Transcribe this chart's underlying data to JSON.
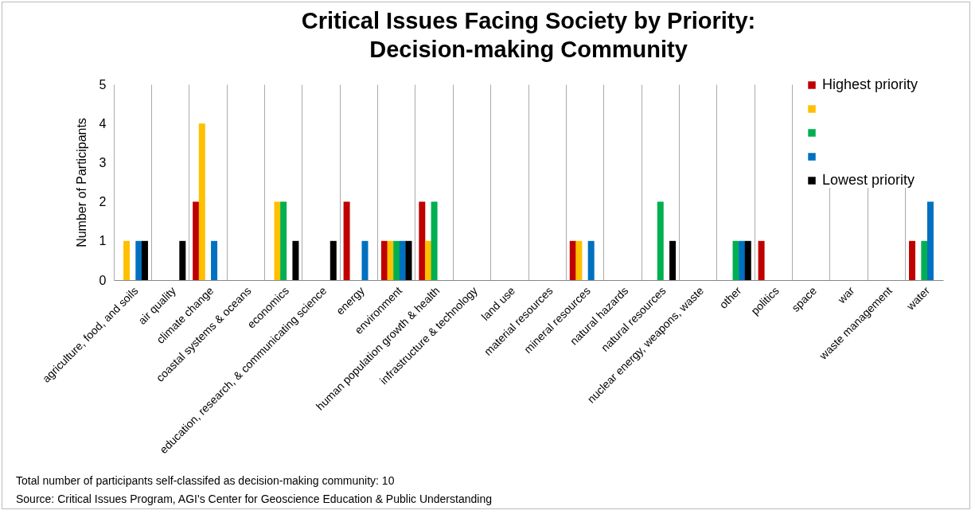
{
  "chart_data": {
    "type": "bar",
    "title": "Critical Issues Facing Society by Priority:\nDecision-making Community",
    "ylabel": "Number of Participants",
    "categories": [
      "agriculture, food, and soils",
      "air quality",
      "climate change",
      "coastal systems & oceans",
      "economics",
      "education, research, & communicating science",
      "energy",
      "environment",
      "human population growth & health",
      "infrastructure & technology",
      "land use",
      "material resources",
      "mineral resources",
      "natural hazards",
      "natural resources",
      "nuclear energy, weapons, waste",
      "other",
      "politics",
      "space",
      "war",
      "waste management",
      "water"
    ],
    "series": [
      {
        "name": "Highest priority",
        "color": "#c00000",
        "values": [
          0,
          0,
          2,
          0,
          0,
          0,
          2,
          1,
          2,
          0,
          0,
          0,
          1,
          0,
          0,
          0,
          0,
          1,
          0,
          0,
          0,
          1
        ]
      },
      {
        "color": "#ffc000",
        "values": [
          1,
          0,
          4,
          0,
          2,
          0,
          0,
          1,
          1,
          0,
          0,
          0,
          1,
          0,
          0,
          0,
          0,
          0,
          0,
          0,
          0,
          0
        ]
      },
      {
        "color": "#00b050",
        "values": [
          0,
          0,
          0,
          0,
          2,
          0,
          0,
          1,
          2,
          0,
          0,
          0,
          0,
          0,
          2,
          0,
          1,
          0,
          0,
          0,
          0,
          1
        ]
      },
      {
        "color": "#0070c0",
        "values": [
          1,
          0,
          1,
          0,
          0,
          0,
          1,
          1,
          0,
          0,
          0,
          0,
          1,
          0,
          0,
          0,
          1,
          0,
          0,
          0,
          0,
          2
        ]
      },
      {
        "name": "Lowest priority",
        "color": "#000000",
        "values": [
          1,
          1,
          0,
          0,
          1,
          1,
          0,
          1,
          0,
          0,
          0,
          0,
          0,
          0,
          1,
          0,
          1,
          0,
          0,
          0,
          0,
          0
        ]
      }
    ],
    "ylim": [
      0,
      5
    ],
    "yticks": [
      0,
      1,
      2,
      3,
      4,
      5
    ],
    "grid": "x",
    "legend": "top right",
    "annotations": [
      "Total number of participants self-classifed as decision-making community: 10",
      "Source: Critical Issues Program, AGI's Center for Geoscience Education & Public Understanding"
    ]
  }
}
